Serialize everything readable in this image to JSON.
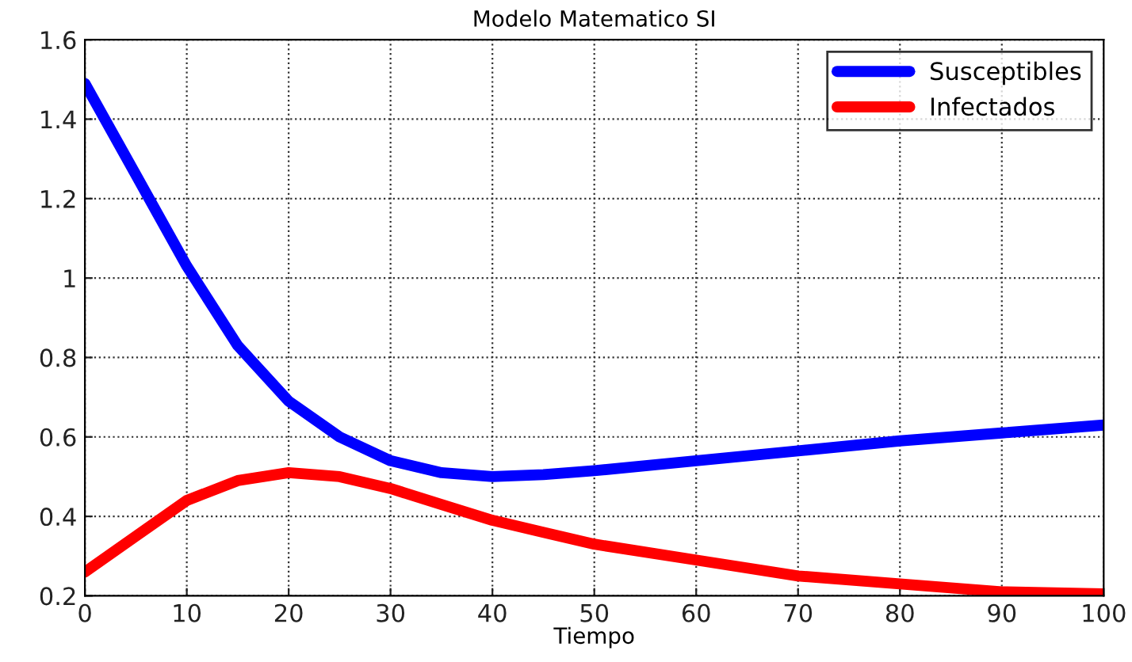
{
  "chart_data": {
    "type": "line",
    "title": "Modelo Matematico SI",
    "xlabel": "Tiempo",
    "x": [
      0,
      5,
      10,
      15,
      20,
      25,
      30,
      35,
      40,
      45,
      50,
      60,
      70,
      80,
      90,
      100
    ],
    "series": [
      {
        "name": "Susceptibles",
        "color": "#0000ff",
        "values": [
          1.49,
          1.26,
          1.03,
          0.83,
          0.69,
          0.6,
          0.54,
          0.51,
          0.5,
          0.505,
          0.515,
          0.54,
          0.565,
          0.59,
          0.61,
          0.63
        ]
      },
      {
        "name": "Infectados",
        "color": "#ff0000",
        "values": [
          0.26,
          0.35,
          0.44,
          0.49,
          0.51,
          0.5,
          0.47,
          0.43,
          0.39,
          0.36,
          0.33,
          0.29,
          0.25,
          0.23,
          0.21,
          0.205
        ]
      }
    ],
    "xlim": [
      0,
      100
    ],
    "xticks": [
      0,
      10,
      20,
      30,
      40,
      50,
      60,
      70,
      80,
      90,
      100
    ],
    "ylim": [
      0.2,
      1.6
    ],
    "yticks": [
      {
        "value": 0.2,
        "label": "0.2"
      },
      {
        "value": 0.4,
        "label": "0.4"
      },
      {
        "value": 0.6,
        "label": "0.6"
      },
      {
        "value": 0.8,
        "label": "0.8"
      },
      {
        "value": 1,
        "label": "1"
      },
      {
        "value": 1.2,
        "label": "1.2"
      },
      {
        "value": 1.4,
        "label": "1.4"
      },
      {
        "value": 1.6,
        "label": "1.6"
      }
    ],
    "grid": true,
    "legend": "top right",
    "marker": "none",
    "line_style": "solid"
  }
}
